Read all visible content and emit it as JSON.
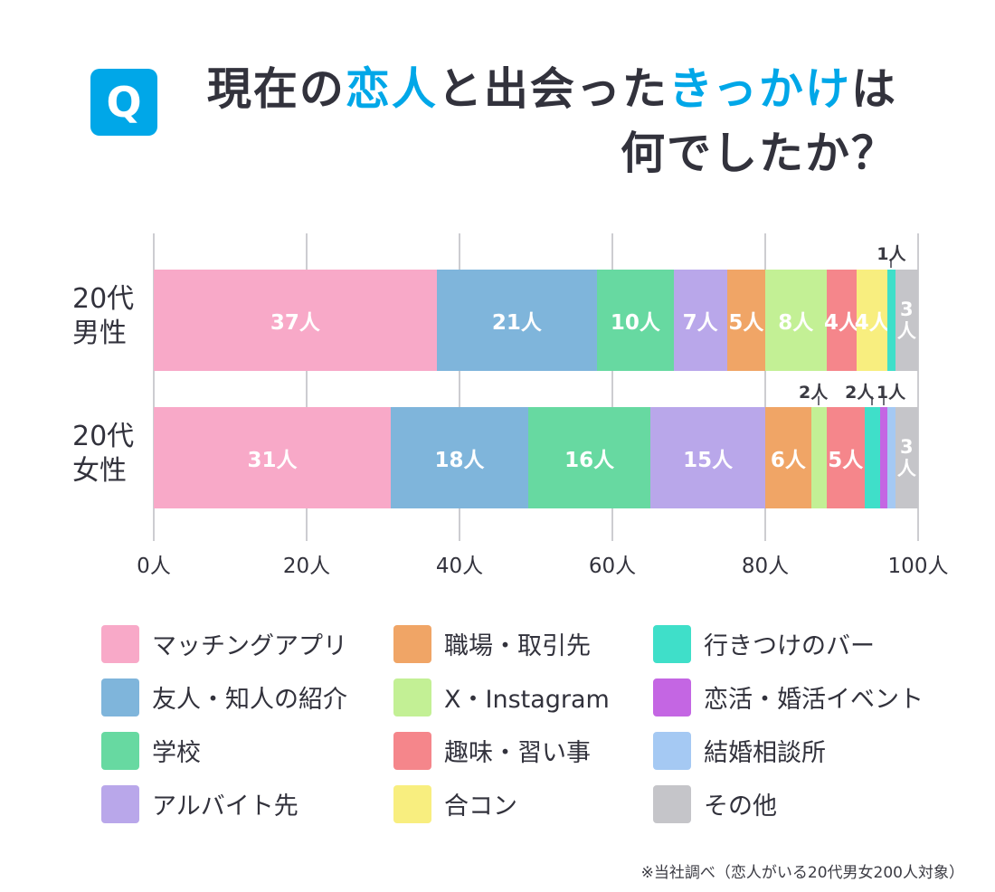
{
  "colors": {
    "accent": "#00A7E8",
    "text_dark": "#32323C"
  },
  "title": {
    "badge": "Q",
    "line1_parts": [
      {
        "text": "現在の",
        "accent": false
      },
      {
        "text": "恋人",
        "accent": true
      },
      {
        "text": "と出会った",
        "accent": false
      },
      {
        "text": "きっかけ",
        "accent": true
      },
      {
        "text": "は",
        "accent": false
      }
    ],
    "line2": "何でしたか？"
  },
  "chart_data": {
    "type": "bar",
    "stacked": true,
    "orientation": "horizontal",
    "title": "現在の恋人と出会ったきっかけは何でしたか？",
    "unit": "人",
    "xlim": [
      0,
      100
    ],
    "grid": true,
    "categories": [
      {
        "label_lines": [
          "20代",
          "男性"
        ]
      },
      {
        "label_lines": [
          "20代",
          "女性"
        ]
      }
    ],
    "x_ticks": [
      {
        "value": 0,
        "label": "0人"
      },
      {
        "value": 20,
        "label": "20人"
      },
      {
        "value": 40,
        "label": "40人"
      },
      {
        "value": 60,
        "label": "60人"
      },
      {
        "value": 80,
        "label": "80人"
      },
      {
        "value": 100,
        "label": "100人"
      }
    ],
    "series": [
      {
        "name": "マッチングアプリ",
        "color": "#F8A9C8",
        "values": [
          37,
          31
        ]
      },
      {
        "name": "友人・知人の紹介",
        "color": "#7FB5DB",
        "values": [
          21,
          18
        ]
      },
      {
        "name": "学校",
        "color": "#67D9A1",
        "values": [
          10,
          16
        ]
      },
      {
        "name": "アルバイト先",
        "color": "#B9A7EA",
        "values": [
          7,
          15
        ]
      },
      {
        "name": "職場・取引先",
        "color": "#F0A566",
        "values": [
          5,
          6
        ]
      },
      {
        "name": "X・Instagram",
        "color": "#C3F095",
        "values": [
          8,
          2
        ]
      },
      {
        "name": "趣味・習い事",
        "color": "#F5868B",
        "values": [
          4,
          5
        ]
      },
      {
        "name": "合コン",
        "color": "#F8EE7F",
        "values": [
          4,
          0
        ]
      },
      {
        "name": "行きつけのバー",
        "color": "#3FDFC9",
        "values": [
          1,
          2
        ]
      },
      {
        "name": "恋活・婚活イベント",
        "color": "#C466E3",
        "values": [
          0,
          1
        ]
      },
      {
        "name": "結婚相談所",
        "color": "#A5C9F3",
        "values": [
          0,
          1
        ]
      },
      {
        "name": "その他",
        "color": "#C5C5C9",
        "values": [
          3,
          3
        ]
      }
    ],
    "label_styles": [
      [
        "inside",
        "inside",
        "inside",
        "inside",
        "inside",
        "inside",
        "inside",
        "inside",
        {
          "style": "callout",
          "dx": 0
        },
        "none",
        "none",
        "inside-vertical"
      ],
      [
        "inside",
        "inside",
        "inside",
        "inside",
        "inside",
        {
          "style": "callout",
          "dx": -6
        },
        "inside",
        "none",
        {
          "style": "callout",
          "dx": -14
        },
        {
          "style": "callout",
          "dx": 8
        },
        "none",
        "inside-vertical"
      ]
    ]
  },
  "footnote": "※当社調べ（恋人がいる20代男女200人対象）"
}
